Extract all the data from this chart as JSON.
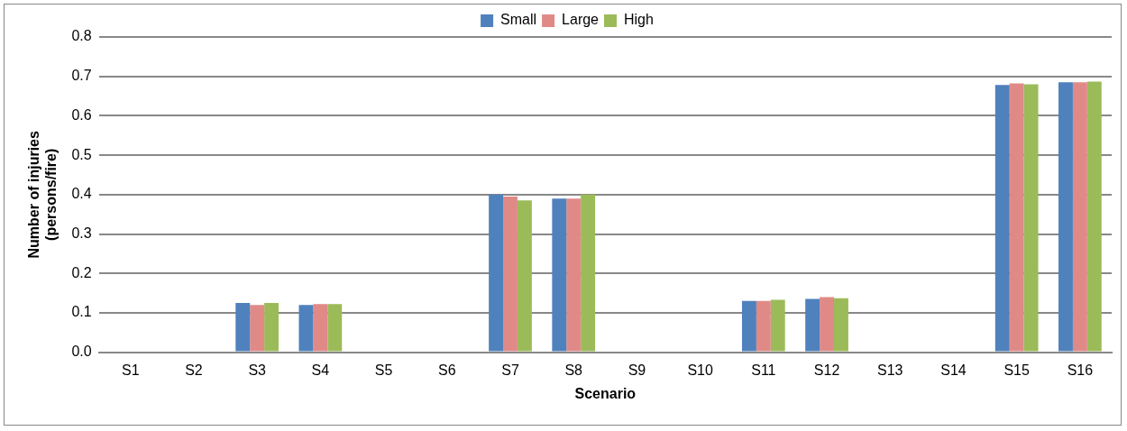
{
  "chart_data": {
    "type": "bar",
    "xlabel": "Scenario",
    "ylabel": "Number of injuries (persons/fire)",
    "categories": [
      "S1",
      "S2",
      "S3",
      "S4",
      "S5",
      "S6",
      "S7",
      "S8",
      "S9",
      "S10",
      "S11",
      "S12",
      "S13",
      "S14",
      "S15",
      "S16"
    ],
    "series": [
      {
        "name": "Small",
        "color": "#4f81bd",
        "values": [
          0,
          0,
          0.125,
          0.12,
          0,
          0,
          0.4,
          0.39,
          0,
          0,
          0.13,
          0.135,
          0,
          0,
          0.678,
          0.685
        ]
      },
      {
        "name": "Large",
        "color": "#e08a88",
        "values": [
          0,
          0,
          0.12,
          0.122,
          0,
          0,
          0.395,
          0.39,
          0,
          0,
          0.13,
          0.14,
          0,
          0,
          0.682,
          0.685
        ]
      },
      {
        "name": "High",
        "color": "#9bbb59",
        "values": [
          0,
          0,
          0.125,
          0.122,
          0,
          0,
          0.385,
          0.4,
          0,
          0,
          0.133,
          0.137,
          0,
          0,
          0.68,
          0.687
        ]
      }
    ],
    "ylim": [
      0,
      0.8
    ],
    "yticks": [
      {
        "value": 0,
        "label": "0.0"
      },
      {
        "value": 0.1,
        "label": "0.1"
      },
      {
        "value": 0.2,
        "label": "0.2"
      },
      {
        "value": 0.3,
        "label": "0.3"
      },
      {
        "value": 0.4,
        "label": "0.4"
      },
      {
        "value": 0.5,
        "label": "0.5"
      },
      {
        "value": 0.6,
        "label": "0.6"
      },
      {
        "value": 0.7,
        "label": "0.7"
      },
      {
        "value": 0.8,
        "label": "0.8"
      }
    ],
    "grid": "y",
    "legend": "top"
  }
}
